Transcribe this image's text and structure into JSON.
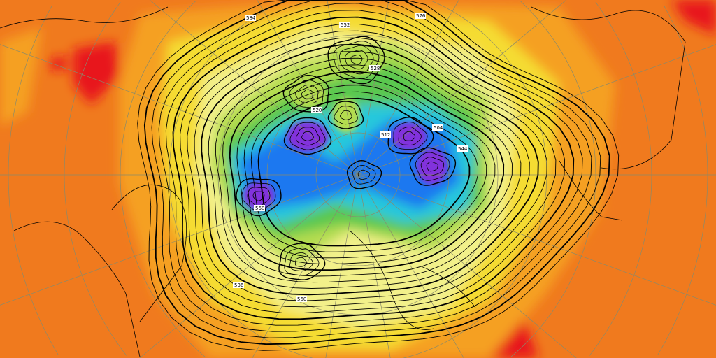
{
  "map": {
    "kind": "500 hPa geopotential height over polar stereographic Northern Hemisphere",
    "colors": {
      "background": "#f07a1e",
      "warm_high": "#e8141e",
      "orange": "#f5a020",
      "yellow": "#f5dc30",
      "pale_yellow": "#f2f08a",
      "light_green": "#b4dc50",
      "green": "#5ac850",
      "cyan": "#28c8dc",
      "blue": "#1e78f0",
      "purple": "#8232dc",
      "deep_purple": "#6a14b4",
      "contour": "#000000",
      "coastline": "#000000",
      "graticule": "#8a8a6a"
    },
    "contour_labels": [
      "552",
      "528",
      "584",
      "576",
      "560",
      "520",
      "512",
      "504",
      "544",
      "568",
      "536"
    ]
  }
}
